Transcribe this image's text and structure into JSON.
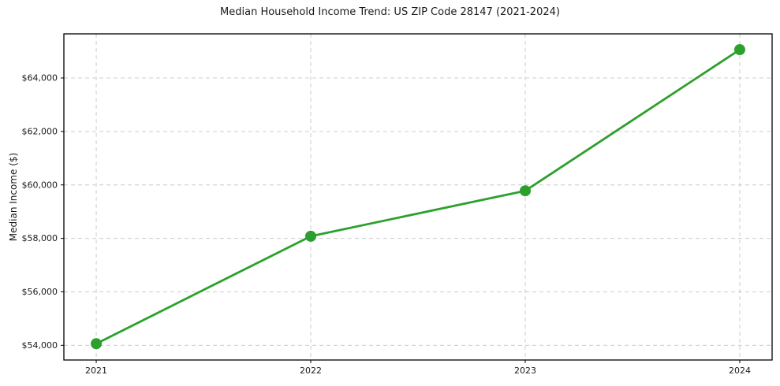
{
  "figure": {
    "title": "Median Household Income Trend: US ZIP Code 28147 (2021-2024)"
  },
  "chart_data": {
    "type": "line",
    "title": "Median Household Income Trend: US ZIP Code 28147 (2021-2024)",
    "xlabel": "",
    "ylabel": "Median Income ($)",
    "categories": [
      "2021",
      "2022",
      "2023",
      "2024"
    ],
    "series": [
      {
        "name": "Median Household Income",
        "values": [
          54060,
          58080,
          59780,
          65060
        ]
      }
    ],
    "y_ticks": [
      54000,
      56000,
      58000,
      60000,
      62000,
      64000
    ],
    "y_tick_labels": [
      "$54,000",
      "$56,000",
      "$58,000",
      "$60,000",
      "$62,000",
      "$64,000"
    ],
    "ylim": [
      53450,
      65650
    ],
    "grid": true,
    "grid_style": "dashed",
    "legend_position": "none",
    "line_color": "#2ca02c",
    "marker": "circle",
    "marker_color": "#2ca02c",
    "background_color": "#ffffff",
    "text_color": "#1a1a1a",
    "grid_color": "#cccccc",
    "spine_color": "#000000"
  }
}
